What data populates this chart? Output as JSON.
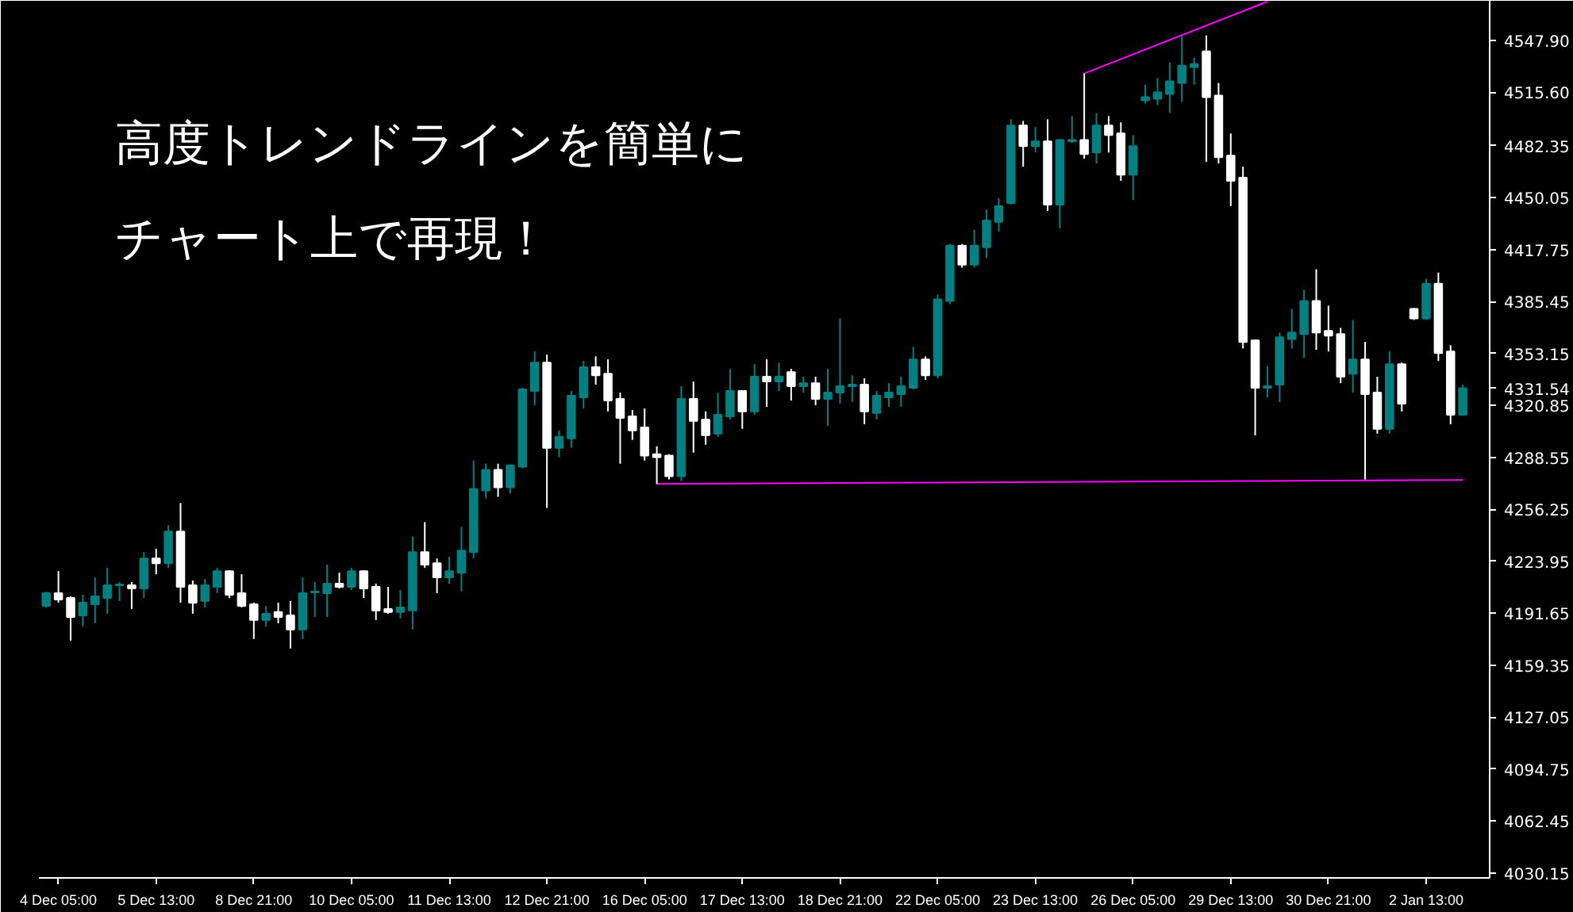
{
  "chart_data": {
    "type": "candlestick",
    "title": "高度トレンドラインを簡単に",
    "subtitle": "チャート上で再現！",
    "categories": [
      null,
      "4 Dec 05:00",
      null,
      null,
      null,
      null,
      null,
      null,
      null,
      "5 Dec 13:00",
      null,
      null,
      null,
      null,
      null,
      null,
      null,
      "8 Dec 21:00",
      null,
      null,
      null,
      null,
      null,
      null,
      null,
      "10 Dec 05:00",
      null,
      null,
      null,
      null,
      null,
      null,
      null,
      "11 Dec 13:00",
      null,
      null,
      null,
      null,
      null,
      null,
      null,
      "12 Dec 21:00",
      null,
      null,
      null,
      null,
      null,
      null,
      null,
      "16 Dec 05:00",
      null,
      null,
      null,
      null,
      null,
      null,
      null,
      "17 Dec 13:00",
      null,
      null,
      null,
      null,
      null,
      null,
      null,
      "18 Dec 21:00",
      null,
      null,
      null,
      null,
      null,
      null,
      null,
      "22 Dec 05:00",
      null,
      null,
      null,
      null,
      null,
      null,
      null,
      "23 Dec 13:00",
      null,
      null,
      null,
      null,
      null,
      null,
      null,
      "26 Dec 05:00",
      null,
      null,
      null,
      null,
      null,
      null,
      null,
      "29 Dec 13:00",
      null,
      null,
      null,
      null,
      null,
      null,
      null,
      "30 Dec 21:00",
      null,
      null,
      null,
      null,
      null,
      null,
      null,
      "2 Jan 13:00",
      null,
      null,
      null
    ],
    "ohlc": [
      [
        4196.2,
        4205.0,
        4195.0,
        4204.1
      ],
      [
        4204.1,
        4217.8,
        4198.2,
        4200.1
      ],
      [
        4201.1,
        4202.1,
        4174.6,
        4189.3
      ],
      [
        4190.3,
        4203.1,
        4183.4,
        4198.2
      ],
      [
        4197.2,
        4213.9,
        4185.4,
        4202.1
      ],
      [
        4201.1,
        4219.8,
        4191.3,
        4209.0
      ],
      [
        4209.0,
        4211.0,
        4199.2,
        4209.5
      ],
      [
        4209.0,
        4211.0,
        4194.2,
        4207.0
      ],
      [
        4207.0,
        4229.6,
        4201.1,
        4225.7
      ],
      [
        4225.7,
        4231.6,
        4215.8,
        4222.7
      ],
      [
        4222.7,
        4246.3,
        4219.8,
        4242.4
      ],
      [
        4242.4,
        4260.1,
        4198.2,
        4208.0
      ],
      [
        4209.0,
        4211.9,
        4191.3,
        4198.2
      ],
      [
        4199.2,
        4212.9,
        4195.2,
        4209.0
      ],
      [
        4208.0,
        4219.8,
        4204.1,
        4217.8
      ],
      [
        4217.8,
        4218.3,
        4201.1,
        4203.1
      ],
      [
        4204.1,
        4215.8,
        4195.2,
        4196.2
      ],
      [
        4197.2,
        4198.2,
        4175.6,
        4187.4
      ],
      [
        4187.4,
        4196.2,
        4183.4,
        4191.3
      ],
      [
        4192.3,
        4198.2,
        4185.4,
        4189.3
      ],
      [
        4190.3,
        4199.2,
        4169.7,
        4181.5
      ],
      [
        4181.5,
        4213.9,
        4175.6,
        4204.1
      ],
      [
        4204.6,
        4211.0,
        4189.3,
        4205.1
      ],
      [
        4204.1,
        4221.8,
        4189.3,
        4210.0
      ],
      [
        4210.0,
        4216.8,
        4207.0,
        4208.0
      ],
      [
        4208.0,
        4219.8,
        4206.0,
        4217.8
      ],
      [
        4217.8,
        4218.3,
        4201.1,
        4207.0
      ],
      [
        4208.0,
        4210.0,
        4187.4,
        4193.3
      ],
      [
        4194.2,
        4208.0,
        4191.3,
        4192.3
      ],
      [
        4192.3,
        4206.0,
        4188.4,
        4195.2
      ],
      [
        4193.3,
        4239.4,
        4181.5,
        4229.6
      ],
      [
        4229.6,
        4248.3,
        4219.8,
        4221.8
      ],
      [
        4222.7,
        4225.7,
        4204.1,
        4213.9
      ],
      [
        4213.9,
        4226.7,
        4210.0,
        4217.8
      ],
      [
        4216.8,
        4245.3,
        4205.1,
        4230.6
      ],
      [
        4229.6,
        4286.6,
        4225.7,
        4268.9
      ],
      [
        4267.9,
        4284.6,
        4263.0,
        4280.7
      ],
      [
        4280.7,
        4284.6,
        4264.0,
        4269.9
      ],
      [
        4269.9,
        4284.1,
        4266.0,
        4283.6
      ],
      [
        4282.7,
        4331.8,
        4281.7,
        4330.8
      ],
      [
        4329.8,
        4354.4,
        4321.0,
        4347.5
      ],
      [
        4347.5,
        4352.4,
        4257.1,
        4294.5
      ],
      [
        4294.5,
        4305.3,
        4288.6,
        4301.3
      ],
      [
        4300.4,
        4329.8,
        4294.5,
        4326.9
      ],
      [
        4325.9,
        4348.5,
        4319.0,
        4344.6
      ],
      [
        4344.6,
        4351.4,
        4333.8,
        4339.6
      ],
      [
        4340.6,
        4349.5,
        4317.1,
        4323.9
      ],
      [
        4324.9,
        4328.8,
        4284.6,
        4313.1
      ],
      [
        4314.1,
        4318.0,
        4299.4,
        4305.3
      ],
      [
        4307.2,
        4319.0,
        4286.6,
        4289.6
      ],
      [
        4290.5,
        4295.4,
        4271.9,
        4288.6
      ],
      [
        4289.6,
        4290.5,
        4274.8,
        4276.8
      ],
      [
        4276.8,
        4332.8,
        4273.8,
        4324.9
      ],
      [
        4324.9,
        4335.7,
        4291.5,
        4311.2
      ],
      [
        4312.1,
        4317.1,
        4296.4,
        4302.3
      ],
      [
        4303.3,
        4328.8,
        4301.3,
        4315.1
      ],
      [
        4314.1,
        4343.6,
        4312.1,
        4329.8
      ],
      [
        4329.8,
        4330.3,
        4306.3,
        4317.1
      ],
      [
        4317.1,
        4346.5,
        4315.1,
        4338.7
      ],
      [
        4338.7,
        4349.5,
        4320.0,
        4335.7
      ],
      [
        4335.7,
        4347.5,
        4329.8,
        4338.7
      ],
      [
        4341.6,
        4343.6,
        4323.9,
        4332.8
      ],
      [
        4332.8,
        4338.7,
        4328.8,
        4334.7
      ],
      [
        4334.7,
        4338.7,
        4321.0,
        4324.9
      ],
      [
        4324.9,
        4343.6,
        4308.2,
        4328.8
      ],
      [
        4328.8,
        4375.0,
        4322.0,
        4332.8
      ],
      [
        4332.8,
        4339.6,
        4323.0,
        4333.8
      ],
      [
        4333.8,
        4337.7,
        4309.2,
        4317.1
      ],
      [
        4316.1,
        4329.8,
        4312.1,
        4326.9
      ],
      [
        4325.9,
        4334.7,
        4320.0,
        4328.8
      ],
      [
        4327.9,
        4338.7,
        4320.0,
        4332.8
      ],
      [
        4331.8,
        4357.3,
        4330.8,
        4349.5
      ],
      [
        4349.5,
        4351.4,
        4336.7,
        4339.6
      ],
      [
        4339.6,
        4389.8,
        4337.7,
        4386.8
      ],
      [
        4385.8,
        4421.2,
        4383.9,
        4420.2
      ],
      [
        4420.2,
        4421.2,
        4406.5,
        4408.4
      ],
      [
        4408.4,
        4430.0,
        4406.5,
        4420.2
      ],
      [
        4419.2,
        4442.8,
        4412.4,
        4435.9
      ],
      [
        4435.0,
        4449.7,
        4429.0,
        4444.8
      ],
      [
        4446.7,
        4498.8,
        4445.8,
        4494.9
      ],
      [
        4494.9,
        4497.8,
        4469.3,
        4482.1
      ],
      [
        4482.1,
        4493.9,
        4478.2,
        4485.1
      ],
      [
        4485.1,
        4498.8,
        4441.8,
        4445.8
      ],
      [
        4445.8,
        4486.5,
        4431.0,
        4486.0
      ],
      [
        4485.1,
        4500.8,
        4484.1,
        4486.0
      ],
      [
        4486.0,
        4527.3,
        4474.3,
        4477.2
      ],
      [
        4478.2,
        4502.7,
        4471.3,
        4494.9
      ],
      [
        4494.9,
        4500.8,
        4478.2,
        4489.0
      ],
      [
        4490.0,
        4496.9,
        4460.5,
        4464.4
      ],
      [
        4464.4,
        4489.0,
        4448.7,
        4482.1
      ],
      [
        4510.6,
        4520.4,
        4508.6,
        4512.6
      ],
      [
        4511.6,
        4524.4,
        4507.7,
        4515.5
      ],
      [
        4514.5,
        4534.2,
        4502.7,
        4522.4
      ],
      [
        4521.4,
        4550.9,
        4509.6,
        4532.2
      ],
      [
        4531.2,
        4537.1,
        4520.4,
        4533.2
      ],
      [
        4541.1,
        4550.9,
        4472.3,
        4512.6
      ],
      [
        4513.5,
        4521.4,
        4471.3,
        4475.2
      ],
      [
        4476.2,
        4490.0,
        4444.8,
        4460.5
      ],
      [
        4462.5,
        4469.3,
        4356.3,
        4360.3
      ],
      [
        4361.3,
        4361.8,
        4302.3,
        4331.8
      ],
      [
        4331.8,
        4345.5,
        4325.9,
        4332.8
      ],
      [
        4333.8,
        4366.2,
        4322.9,
        4363.2
      ],
      [
        4362.2,
        4380.9,
        4356.3,
        4366.2
      ],
      [
        4365.2,
        4392.7,
        4350.4,
        4385.8
      ],
      [
        4385.8,
        4405.5,
        4355.4,
        4366.2
      ],
      [
        4367.2,
        4382.9,
        4354.4,
        4364.2
      ],
      [
        4365.2,
        4369.1,
        4334.7,
        4338.7
      ],
      [
        4340.6,
        4374.0,
        4328.8,
        4349.5
      ],
      [
        4349.5,
        4360.3,
        4274.8,
        4327.9
      ],
      [
        4328.8,
        4338.7,
        4303.3,
        4306.3
      ],
      [
        4306.3,
        4354.4,
        4303.3,
        4346.5
      ],
      [
        4346.5,
        4347.5,
        4317.1,
        4322.0
      ],
      [
        4380.9,
        4381.4,
        4374.0,
        4375.0
      ],
      [
        4375.0,
        4399.6,
        4374.0,
        4396.6
      ],
      [
        4396.6,
        4403.5,
        4348.5,
        4353.4
      ],
      [
        4354.4,
        4358.3,
        4309.2,
        4315.1
      ],
      [
        4315.1,
        4333.8,
        4315.1,
        4331.54
      ]
    ],
    "colors": [
      "#008080",
      "#ffffff",
      "#ffffff",
      "#008080",
      "#008080",
      "#008080",
      "#008080",
      "#ffffff",
      "#008080",
      "#ffffff",
      "#008080",
      "#ffffff",
      "#ffffff",
      "#008080",
      "#008080",
      "#ffffff",
      "#ffffff",
      "#ffffff",
      "#008080",
      "#ffffff",
      "#ffffff",
      "#008080",
      "#008080",
      "#008080",
      "#ffffff",
      "#008080",
      "#ffffff",
      "#ffffff",
      "#ffffff",
      "#008080",
      "#008080",
      "#ffffff",
      "#ffffff",
      "#008080",
      "#008080",
      "#008080",
      "#008080",
      "#ffffff",
      "#008080",
      "#008080",
      "#008080",
      "#ffffff",
      "#008080",
      "#008080",
      "#008080",
      "#ffffff",
      "#ffffff",
      "#ffffff",
      "#ffffff",
      "#ffffff",
      "#ffffff",
      "#ffffff",
      "#008080",
      "#ffffff",
      "#ffffff",
      "#008080",
      "#008080",
      "#ffffff",
      "#008080",
      "#ffffff",
      "#008080",
      "#ffffff",
      "#008080",
      "#ffffff",
      "#008080",
      "#008080",
      "#008080",
      "#ffffff",
      "#008080",
      "#008080",
      "#008080",
      "#008080",
      "#ffffff",
      "#008080",
      "#008080",
      "#ffffff",
      "#008080",
      "#008080",
      "#008080",
      "#008080",
      "#ffffff",
      "#008080",
      "#ffffff",
      "#008080",
      "#008080",
      "#ffffff",
      "#008080",
      "#ffffff",
      "#ffffff",
      "#008080",
      "#008080",
      "#008080",
      "#008080",
      "#008080",
      "#008080",
      "#ffffff",
      "#ffffff",
      "#ffffff",
      "#ffffff",
      "#ffffff",
      "#008080",
      "#008080",
      "#008080",
      "#008080",
      "#ffffff",
      "#ffffff",
      "#ffffff",
      "#008080",
      "#ffffff",
      "#ffffff",
      "#008080",
      "#ffffff",
      "#ffffff",
      "#008080",
      "#ffffff",
      "#ffffff",
      "#008080"
    ],
    "series": [
      {
        "type": "line",
        "color": "#ff00ff",
        "values": [
          null,
          null,
          null,
          null,
          null,
          null,
          null,
          null,
          null,
          null,
          null,
          null,
          null,
          null,
          null,
          null,
          null,
          null,
          null,
          null,
          null,
          null,
          null,
          null,
          null,
          null,
          null,
          null,
          null,
          null,
          null,
          null,
          null,
          null,
          null,
          null,
          null,
          null,
          null,
          null,
          null,
          null,
          null,
          null,
          null,
          null,
          null,
          null,
          null,
          null,
          null,
          null,
          null,
          null,
          null,
          null,
          null,
          null,
          null,
          null,
          null,
          null,
          null,
          null,
          null,
          null,
          null,
          null,
          null,
          null,
          null,
          null,
          null,
          null,
          null,
          null,
          null,
          null,
          null,
          null,
          null,
          null,
          null,
          null,
          null,
          4527.3,
          null,
          null,
          null,
          null,
          null,
          null,
          null,
          null,
          null,
          null,
          null,
          null,
          null,
          null,
          4572.0,
          null,
          null,
          null,
          null,
          null,
          null,
          null,
          null,
          null,
          null,
          null,
          null,
          null,
          null,
          null,
          null
        ]
      },
      {
        "type": "line",
        "color": "#ff00ff",
        "values": [
          null,
          null,
          null,
          null,
          null,
          null,
          null,
          null,
          null,
          null,
          null,
          null,
          null,
          null,
          null,
          null,
          null,
          null,
          null,
          null,
          null,
          null,
          null,
          null,
          null,
          null,
          null,
          null,
          null,
          null,
          null,
          null,
          null,
          null,
          null,
          null,
          null,
          null,
          null,
          null,
          null,
          null,
          null,
          null,
          null,
          null,
          null,
          null,
          null,
          null,
          4272.0,
          null,
          null,
          null,
          null,
          null,
          null,
          null,
          null,
          null,
          null,
          null,
          null,
          null,
          null,
          null,
          null,
          null,
          null,
          null,
          null,
          null,
          null,
          null,
          null,
          null,
          null,
          null,
          null,
          null,
          null,
          null,
          null,
          null,
          null,
          null,
          null,
          null,
          null,
          null,
          null,
          null,
          null,
          null,
          null,
          null,
          null,
          null,
          null,
          null,
          null,
          null,
          null,
          null,
          null,
          null,
          null,
          null,
          null,
          null,
          null,
          null,
          null,
          null,
          null,
          null,
          4274.5
        ]
      }
    ],
    "ylim": [
      4027.0,
      4572.5
    ],
    "yticks": [
      {
        "value": 4547.9,
        "label": "4547.90"
      },
      {
        "value": 4515.6,
        "label": "4515.60"
      },
      4482.35,
      4450.05,
      4417.75,
      4385.45,
      4353.15,
      4331.54,
      4320.85,
      4288.55,
      4256.25,
      4223.95,
      4191.65,
      4159.35,
      4127.05,
      4094.75,
      4062.45,
      4030.15
    ]
  }
}
